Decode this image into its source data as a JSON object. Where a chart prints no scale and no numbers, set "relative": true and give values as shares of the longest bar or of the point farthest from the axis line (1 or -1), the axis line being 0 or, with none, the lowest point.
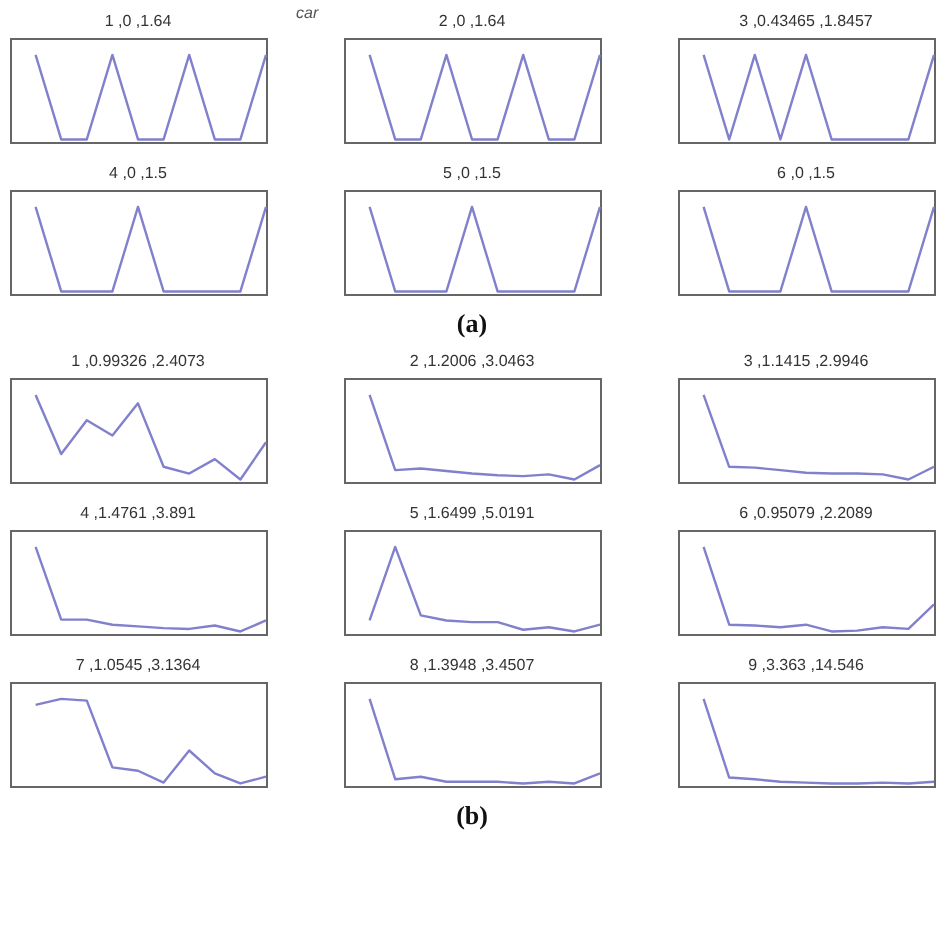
{
  "chart_data": [
    {
      "type": "line",
      "title": "1 ,0 ,1.64",
      "annotations": [
        "car"
      ],
      "relative": true,
      "color": "#8080cc",
      "categories": [
        null,
        null,
        null,
        null,
        null,
        null,
        null,
        null,
        null,
        null
      ],
      "values": [
        1,
        0,
        0,
        1,
        0,
        0,
        1,
        0,
        0,
        1
      ]
    },
    {
      "type": "line",
      "title": "2 ,0 ,1.64",
      "relative": true,
      "color": "#8080cc",
      "categories": [
        null,
        null,
        null,
        null,
        null,
        null,
        null,
        null,
        null,
        null
      ],
      "values": [
        1,
        0,
        0,
        1,
        0,
        0,
        1,
        0,
        0,
        1
      ]
    },
    {
      "type": "line",
      "title": "3 ,0.43465 ,1.8457",
      "relative": true,
      "color": "#8080cc",
      "categories": [
        null,
        null,
        null,
        null,
        null,
        null,
        null,
        null,
        null,
        null
      ],
      "values": [
        1,
        0,
        1,
        0,
        1,
        0,
        0,
        0,
        0,
        1
      ]
    },
    {
      "type": "line",
      "title": "4 ,0 ,1.5",
      "relative": true,
      "color": "#8080cc",
      "categories": [
        null,
        null,
        null,
        null,
        null,
        null,
        null,
        null,
        null,
        null
      ],
      "values": [
        1,
        0,
        0,
        0,
        1,
        0,
        0,
        0,
        0,
        1
      ]
    },
    {
      "type": "line",
      "title": "5 ,0 ,1.5",
      "annotations": [
        "(a)"
      ],
      "relative": true,
      "color": "#8080cc",
      "categories": [
        null,
        null,
        null,
        null,
        null,
        null,
        null,
        null,
        null,
        null
      ],
      "values": [
        1,
        0,
        0,
        0,
        1,
        0,
        0,
        0,
        0,
        1
      ]
    },
    {
      "type": "line",
      "title": "6 ,0 ,1.5",
      "relative": true,
      "color": "#8080cc",
      "categories": [
        null,
        null,
        null,
        null,
        null,
        null,
        null,
        null,
        null,
        null
      ],
      "values": [
        1,
        0,
        0,
        0,
        1,
        0,
        0,
        0,
        0,
        1
      ]
    },
    {
      "type": "line",
      "title": "1 ,0.99326 ,2.4073",
      "relative": true,
      "color": "#8080cc",
      "categories": [
        null,
        null,
        null,
        null,
        null,
        null,
        null,
        null,
        null,
        null
      ],
      "values": [
        1,
        0.3,
        0.7,
        0.52,
        0.9,
        0.15,
        0.07,
        0.24,
        0,
        0.44
      ]
    },
    {
      "type": "line",
      "title": "2 ,1.2006 ,3.0463",
      "relative": true,
      "color": "#8080cc",
      "categories": [
        null,
        null,
        null,
        null,
        null,
        null,
        null,
        null,
        null,
        null
      ],
      "values": [
        1,
        0.11,
        0.13,
        0.1,
        0.07,
        0.05,
        0.04,
        0.06,
        0,
        0.17
      ]
    },
    {
      "type": "line",
      "title": "3 ,1.1415 ,2.9946",
      "relative": true,
      "color": "#8080cc",
      "categories": [
        null,
        null,
        null,
        null,
        null,
        null,
        null,
        null,
        null,
        null
      ],
      "values": [
        1,
        0.15,
        0.14,
        0.11,
        0.08,
        0.07,
        0.07,
        0.06,
        0,
        0.15
      ]
    },
    {
      "type": "line",
      "title": "4 ,1.4761 ,3.891",
      "relative": true,
      "color": "#8080cc",
      "categories": [
        null,
        null,
        null,
        null,
        null,
        null,
        null,
        null,
        null,
        null
      ],
      "values": [
        1,
        0.14,
        0.14,
        0.08,
        0.06,
        0.04,
        0.03,
        0.07,
        0,
        0.13
      ]
    },
    {
      "type": "line",
      "title": "5 ,1.6499 ,5.0191",
      "relative": true,
      "color": "#8080cc",
      "categories": [
        null,
        null,
        null,
        null,
        null,
        null,
        null,
        null,
        null,
        null
      ],
      "values": [
        0.13,
        1,
        0.19,
        0.13,
        0.11,
        0.11,
        0.02,
        0.05,
        0,
        0.08
      ]
    },
    {
      "type": "line",
      "title": "6 ,0.95079 ,2.2089",
      "relative": true,
      "color": "#8080cc",
      "categories": [
        null,
        null,
        null,
        null,
        null,
        null,
        null,
        null,
        null,
        null
      ],
      "values": [
        1,
        0.08,
        0.07,
        0.05,
        0.08,
        0,
        0.01,
        0.05,
        0.03,
        0.32
      ]
    },
    {
      "type": "line",
      "title": "7 ,1.0545 ,3.1364",
      "relative": true,
      "color": "#8080cc",
      "categories": [
        null,
        null,
        null,
        null,
        null,
        null,
        null,
        null,
        null,
        null
      ],
      "values": [
        0.93,
        1,
        0.98,
        0.19,
        0.15,
        0.01,
        0.39,
        0.12,
        0,
        0.08
      ]
    },
    {
      "type": "line",
      "title": "8 ,1.3948 ,3.4507",
      "annotations": [
        "(b)"
      ],
      "relative": true,
      "color": "#8080cc",
      "categories": [
        null,
        null,
        null,
        null,
        null,
        null,
        null,
        null,
        null,
        null
      ],
      "values": [
        1,
        0.05,
        0.08,
        0.02,
        0.02,
        0.02,
        0,
        0.02,
        0,
        0.12
      ]
    },
    {
      "type": "line",
      "title": "9 ,3.363 ,14.546",
      "relative": true,
      "color": "#8080cc",
      "categories": [
        null,
        null,
        null,
        null,
        null,
        null,
        null,
        null,
        null,
        null
      ],
      "values": [
        1,
        0.07,
        0.05,
        0.02,
        0.01,
        0,
        0,
        0.01,
        0,
        0.02
      ]
    }
  ]
}
